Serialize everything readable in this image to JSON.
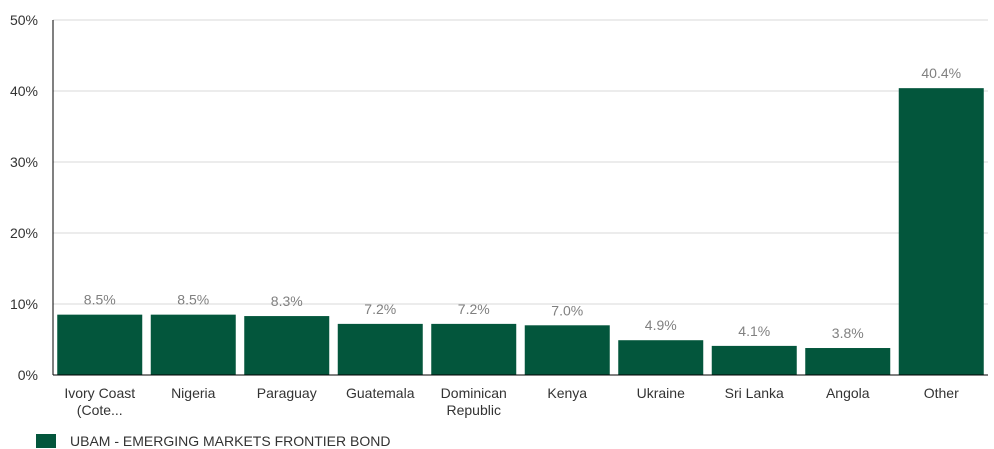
{
  "chart_data": {
    "type": "bar",
    "categories": [
      [
        "Ivory Coast",
        "(Cote..."
      ],
      [
        "Nigeria"
      ],
      [
        "Paraguay"
      ],
      [
        "Guatemala"
      ],
      [
        "Dominican",
        "Republic"
      ],
      [
        "Kenya"
      ],
      [
        "Ukraine"
      ],
      [
        "Sri Lanka"
      ],
      [
        "Angola"
      ],
      [
        "Other"
      ]
    ],
    "series": [
      {
        "name": "UBAM - EMERGING MARKETS FRONTIER BOND",
        "values": [
          8.5,
          8.5,
          8.3,
          7.2,
          7.2,
          7.0,
          4.9,
          4.1,
          3.8,
          40.4
        ],
        "data_labels": [
          "8.5%",
          "8.5%",
          "8.3%",
          "7.2%",
          "7.2%",
          "7.0%",
          "4.9%",
          "4.1%",
          "3.8%",
          "40.4%"
        ]
      }
    ],
    "y_ticks": [
      0,
      10,
      20,
      30,
      40,
      50
    ],
    "y_tick_labels": [
      "0%",
      "10%",
      "20%",
      "30%",
      "40%",
      "50%"
    ],
    "ylim": [
      0,
      50
    ],
    "xlabel": "",
    "ylabel": "",
    "grid": true,
    "legend_position": "bottom-left",
    "colors": {
      "bar": "#03563c",
      "grid": "#d9d9d9",
      "axis": "#000000",
      "data_label": "#808080"
    }
  }
}
